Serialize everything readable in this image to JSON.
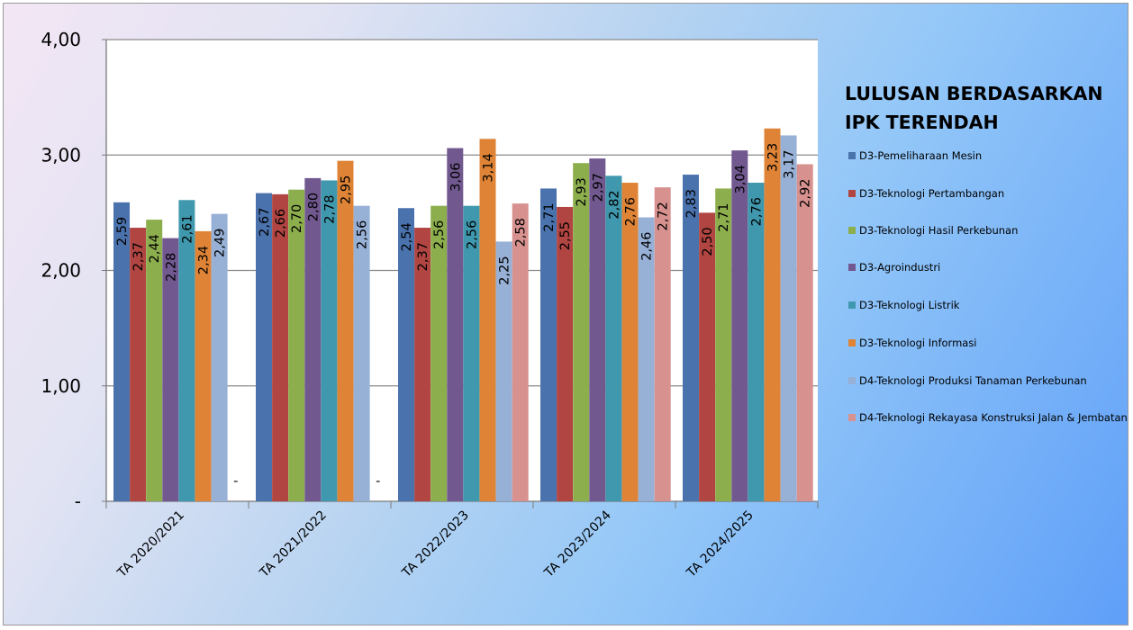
{
  "chart_data": {
    "type": "bar",
    "title": "LULUSAN BERDASARKAN IPK TERENDAH",
    "categories": [
      "TA 2020/2021",
      "TA 2021/2022",
      "TA 2022/2023",
      "TA 2023/2024",
      "TA 2024/2025"
    ],
    "ylim": [
      0,
      4
    ],
    "yticks": [
      0,
      1,
      2,
      3,
      4
    ],
    "ytick_labels": [
      "-",
      "1,00",
      "2,00",
      "3,00",
      "4,00"
    ],
    "grid": true,
    "legend_position": "right",
    "series": [
      {
        "name": "D3-Pemeliharaan Mesin",
        "color": "#4a72ad",
        "values": [
          2.59,
          2.67,
          2.54,
          2.71,
          2.83
        ],
        "labels": [
          "2,59",
          "2,67",
          "2,54",
          "2,71",
          "2,83"
        ]
      },
      {
        "name": "D3-Teknologi Pertambangan",
        "color": "#b14542",
        "values": [
          2.37,
          2.66,
          2.37,
          2.55,
          2.5
        ],
        "labels": [
          "2,37",
          "2,66",
          "2,37",
          "2,55",
          "2,50"
        ]
      },
      {
        "name": "D3-Teknologi Hasil Perkebunan",
        "color": "#8cae4d",
        "values": [
          2.44,
          2.7,
          2.56,
          2.93,
          2.71
        ],
        "labels": [
          "2,44",
          "2,70",
          "2,56",
          "2,93",
          "2,71"
        ]
      },
      {
        "name": "D3-Agroindustri",
        "color": "#71588f",
        "values": [
          2.28,
          2.8,
          3.06,
          2.97,
          3.04
        ],
        "labels": [
          "2,28",
          "2,80",
          "3,06",
          "2,97",
          "3,04"
        ]
      },
      {
        "name": "D3-Teknologi Listrik",
        "color": "#3f98ad",
        "values": [
          2.61,
          2.78,
          2.56,
          2.82,
          2.76
        ],
        "labels": [
          "2,61",
          "2,78",
          "2,56",
          "2,82",
          "2,76"
        ]
      },
      {
        "name": "D3-Teknologi Informasi",
        "color": "#df8436",
        "values": [
          2.34,
          2.95,
          3.14,
          2.76,
          3.23
        ],
        "labels": [
          "2,34",
          "2,95",
          "3,14",
          "2,76",
          "3,23"
        ]
      },
      {
        "name": "D4-Teknologi Produksi Tanaman Perkebunan",
        "color": "#97b0d6",
        "values": [
          2.49,
          2.56,
          2.25,
          2.46,
          3.17
        ],
        "labels": [
          "2,49",
          "2,56",
          "2,25",
          "2,46",
          "3,17"
        ]
      },
      {
        "name": "D4-Teknologi Rekayasa Konstruksi Jalan & Jembatan",
        "color": "#d7918e",
        "values": [
          null,
          null,
          2.58,
          2.72,
          2.92
        ],
        "labels": [
          "-",
          "-",
          "2,58",
          "2,72",
          "2,92"
        ]
      }
    ]
  }
}
